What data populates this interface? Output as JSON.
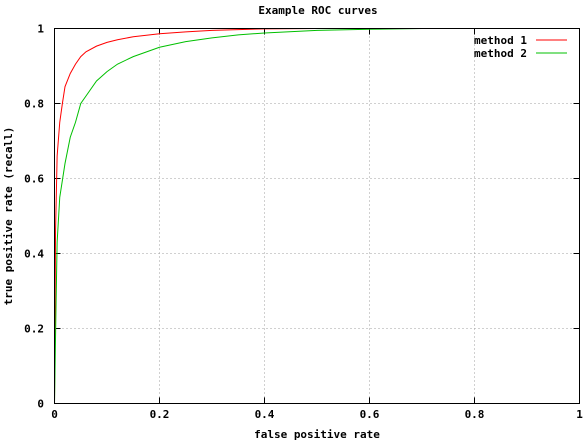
{
  "chart_data": {
    "type": "line",
    "title": "Example ROC curves",
    "xlabel": "false positive rate",
    "ylabel": "true positive rate (recall)",
    "xlim": [
      0,
      1
    ],
    "ylim": [
      0,
      1
    ],
    "xticks": [
      "0",
      "0.2",
      "0.4",
      "0.6",
      "0.8",
      "1"
    ],
    "yticks": [
      "0",
      "0.2",
      "0.4",
      "0.6",
      "0.8",
      "1"
    ],
    "grid": true,
    "legend_position": "top-right",
    "series": [
      {
        "name": "method 1",
        "color": "#ff0000",
        "x": [
          0.0,
          0.002,
          0.005,
          0.01,
          0.015,
          0.02,
          0.03,
          0.04,
          0.05,
          0.06,
          0.08,
          0.1,
          0.12,
          0.15,
          0.2,
          0.25,
          0.3,
          0.35,
          0.4,
          0.5
        ],
        "y": [
          0.0,
          0.46,
          0.66,
          0.75,
          0.8,
          0.845,
          0.88,
          0.905,
          0.925,
          0.938,
          0.953,
          0.963,
          0.97,
          0.978,
          0.986,
          0.991,
          0.995,
          0.997,
          0.999,
          1.0
        ]
      },
      {
        "name": "method 2",
        "color": "#00c000",
        "x": [
          0.0,
          0.003,
          0.005,
          0.01,
          0.02,
          0.03,
          0.04,
          0.05,
          0.06,
          0.08,
          0.1,
          0.12,
          0.15,
          0.2,
          0.25,
          0.3,
          0.35,
          0.4,
          0.5,
          0.6,
          0.7
        ],
        "y": [
          0.0,
          0.27,
          0.43,
          0.55,
          0.64,
          0.71,
          0.75,
          0.8,
          0.82,
          0.86,
          0.885,
          0.905,
          0.925,
          0.95,
          0.965,
          0.975,
          0.983,
          0.988,
          0.995,
          0.998,
          1.0
        ]
      }
    ]
  }
}
